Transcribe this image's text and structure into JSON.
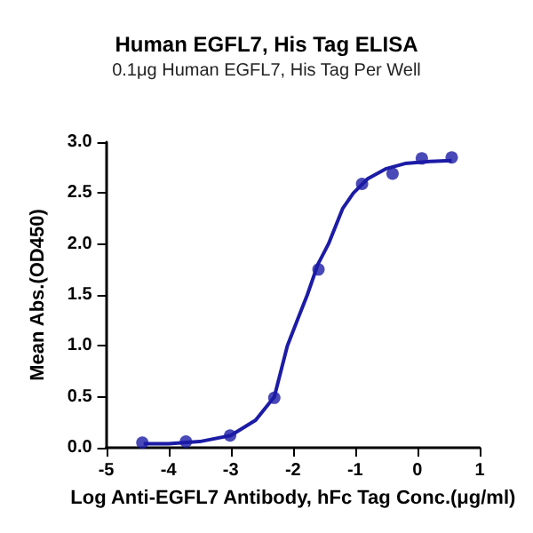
{
  "chart_data": {
    "type": "scatter",
    "title": "Human EGFL7, His Tag ELISA",
    "subtitle": "0.1μg Human EGFL7, His Tag Per Well",
    "xlabel": "Log Anti-EGFL7 Antibody, hFc Tag Conc.(μg/ml)",
    "ylabel": "Mean Abs.(OD450)",
    "xlim": [
      -5,
      1
    ],
    "xticks": [
      -5,
      -4,
      -3,
      -2,
      -1,
      0,
      1
    ],
    "ylim": [
      0,
      3
    ],
    "yticks": [
      {
        "value": 0,
        "label": "0.0"
      },
      {
        "value": 0.5,
        "label": "0.5"
      },
      {
        "value": 1,
        "label": "1.0"
      },
      {
        "value": 1.5,
        "label": "1.5"
      },
      {
        "value": 2,
        "label": "2.0"
      },
      {
        "value": 2.5,
        "label": "2.5"
      },
      {
        "value": 3,
        "label": "3.0"
      }
    ],
    "grid": false,
    "series": [
      {
        "marker": "circle",
        "color": "#1c1ca6",
        "x": [
          -4.42,
          -3.72,
          -3.01,
          -2.3,
          -1.59,
          -0.89,
          -0.4,
          0.07,
          0.55
        ],
        "values": [
          0.05,
          0.06,
          0.12,
          0.49,
          1.75,
          2.59,
          2.69,
          2.84,
          2.85
        ]
      },
      {
        "type": "line",
        "marker": "none",
        "color": "#1c1ca6",
        "x": [
          -4.4,
          -4,
          -3.5,
          -3,
          -2.6,
          -2.3,
          -2.09,
          -1.9,
          -1.77,
          -1.6,
          -1.43,
          -1.2,
          -1.03,
          -0.8,
          -0.5,
          -0.2,
          0.2,
          0.55
        ],
        "values": [
          0.04,
          0.04,
          0.06,
          0.12,
          0.27,
          0.5,
          1.0,
          1.3,
          1.5,
          1.8,
          2.0,
          2.35,
          2.5,
          2.64,
          2.74,
          2.79,
          2.81,
          2.82
        ]
      }
    ]
  }
}
